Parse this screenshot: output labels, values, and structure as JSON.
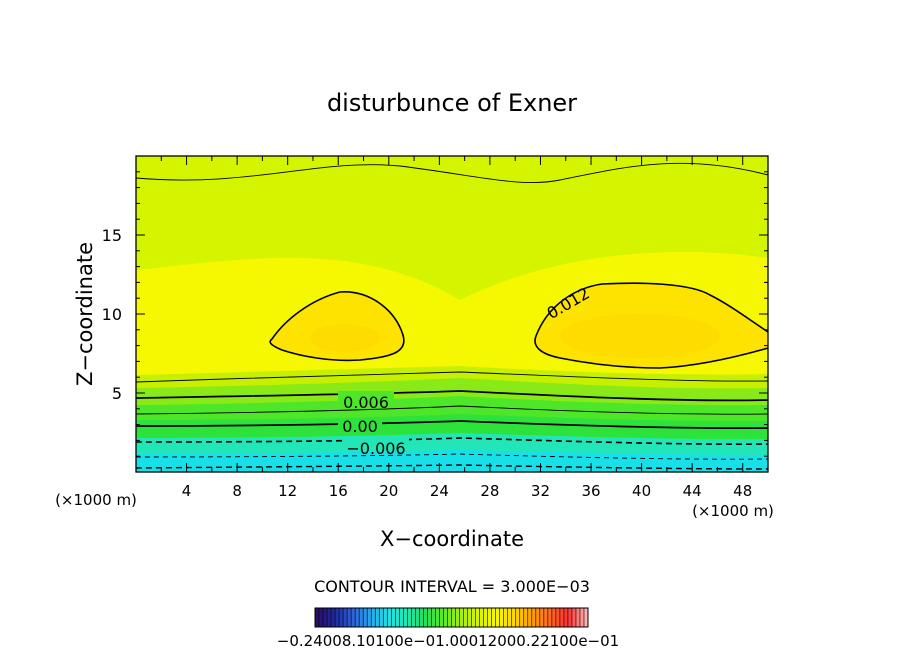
{
  "chart_data": {
    "type": "contour",
    "title": "disturbunce of Exner",
    "xlabel": "X−coordinate",
    "ylabel": "Z−coordinate",
    "x_unit_label": "(×1000 m)",
    "y_unit_label": "(×1000 m)",
    "xlim": [
      0,
      50
    ],
    "ylim": [
      0,
      20
    ],
    "x_ticks": [
      "4",
      "8",
      "12",
      "16",
      "20",
      "24",
      "28",
      "32",
      "36",
      "40",
      "44",
      "48"
    ],
    "y_ticks": [
      "5",
      "10",
      "15"
    ],
    "contour_interval_text": "CONTOUR INTERVAL = 3.000E−03",
    "contour_labels": [
      "0.012",
      "0.006",
      "0.00",
      "−0.006"
    ],
    "colorbar_labels_text": "−0.24008.10100e−01.00012000.22100e−01",
    "colorbar_colors": [
      "#2a0f6a",
      "#1f2aa0",
      "#2f62d8",
      "#27a9f0",
      "#1fe3e8",
      "#1ee8b4",
      "#20e060",
      "#5ee820",
      "#a6ee10",
      "#d8f400",
      "#f6f700",
      "#ffd800",
      "#ff9f00",
      "#ff6a20",
      "#ff3030",
      "#ffb0b0"
    ],
    "field_colors": {
      "lowest": "#18e0e8",
      "low": "#22e6b8",
      "green": "#2ee23c",
      "lime": "#8aea18",
      "yellow_green": "#d4f400",
      "yellow": "#f5f800",
      "core": "#ffdc00"
    },
    "contours": [
      {
        "level": 0.012,
        "label": "0.012",
        "style": "solid",
        "weight": "bold"
      },
      {
        "level": 0.006,
        "label": "0.006",
        "style": "solid",
        "weight": "bold"
      },
      {
        "level": 0.0,
        "label": "0.00",
        "style": "solid",
        "weight": "bold"
      },
      {
        "level": -0.006,
        "label": "−0.006",
        "style": "dashed",
        "weight": "bold"
      }
    ]
  }
}
